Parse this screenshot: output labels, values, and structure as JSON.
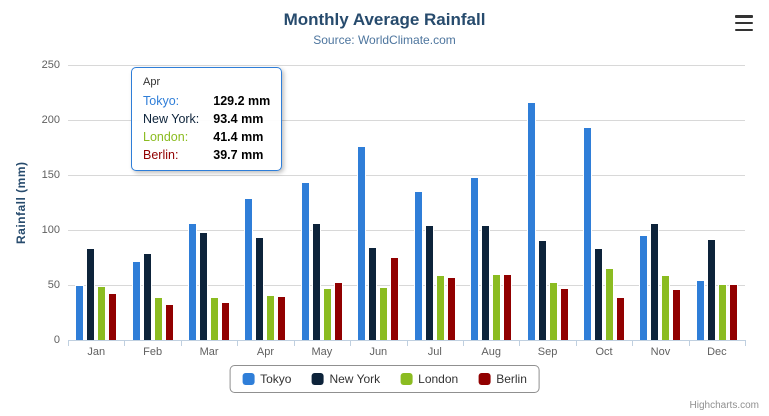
{
  "header": {
    "title": "Monthly Average Rainfall",
    "subtitle": "Source: WorldClimate.com"
  },
  "chart_data": {
    "type": "bar",
    "title": "Monthly Average Rainfall",
    "subtitle": "Source: WorldClimate.com",
    "categories": [
      "Jan",
      "Feb",
      "Mar",
      "Apr",
      "May",
      "Jun",
      "Jul",
      "Aug",
      "Sep",
      "Oct",
      "Nov",
      "Dec"
    ],
    "series": [
      {
        "name": "Tokyo",
        "color": "#2f7ed8",
        "values": [
          49.9,
          71.5,
          106.4,
          129.2,
          144.0,
          176.0,
          135.6,
          148.5,
          216.4,
          194.1,
          95.6,
          54.4
        ]
      },
      {
        "name": "New York",
        "color": "#0d233a",
        "values": [
          83.6,
          78.8,
          98.5,
          93.4,
          106.0,
          84.5,
          105.0,
          104.3,
          91.2,
          83.5,
          106.6,
          92.3
        ]
      },
      {
        "name": "London",
        "color": "#8bbc21",
        "values": [
          48.9,
          38.8,
          39.3,
          41.4,
          47.0,
          48.3,
          59.0,
          59.6,
          52.4,
          65.2,
          59.3,
          51.2
        ]
      },
      {
        "name": "Berlin",
        "color": "#910000",
        "values": [
          42.4,
          33.2,
          34.5,
          39.7,
          52.6,
          75.5,
          57.4,
          60.4,
          47.6,
          39.1,
          46.8,
          51.1
        ]
      }
    ],
    "xlabel": "",
    "ylabel": "Rainfall (mm)",
    "ylim": [
      0,
      250
    ],
    "ytick_interval": 50,
    "grid": true,
    "legend_position": "bottom"
  },
  "tooltip": {
    "category": "Apr",
    "rows": [
      {
        "name": "Tokyo",
        "value": "129.2 mm",
        "color": "#2f7ed8"
      },
      {
        "name": "New York",
        "value": "93.4 mm",
        "color": "#0d233a"
      },
      {
        "name": "London",
        "value": "41.4 mm",
        "color": "#8bbc21"
      },
      {
        "name": "Berlin",
        "value": "39.7 mm",
        "color": "#910000"
      }
    ]
  },
  "credits": "Highcharts.com"
}
